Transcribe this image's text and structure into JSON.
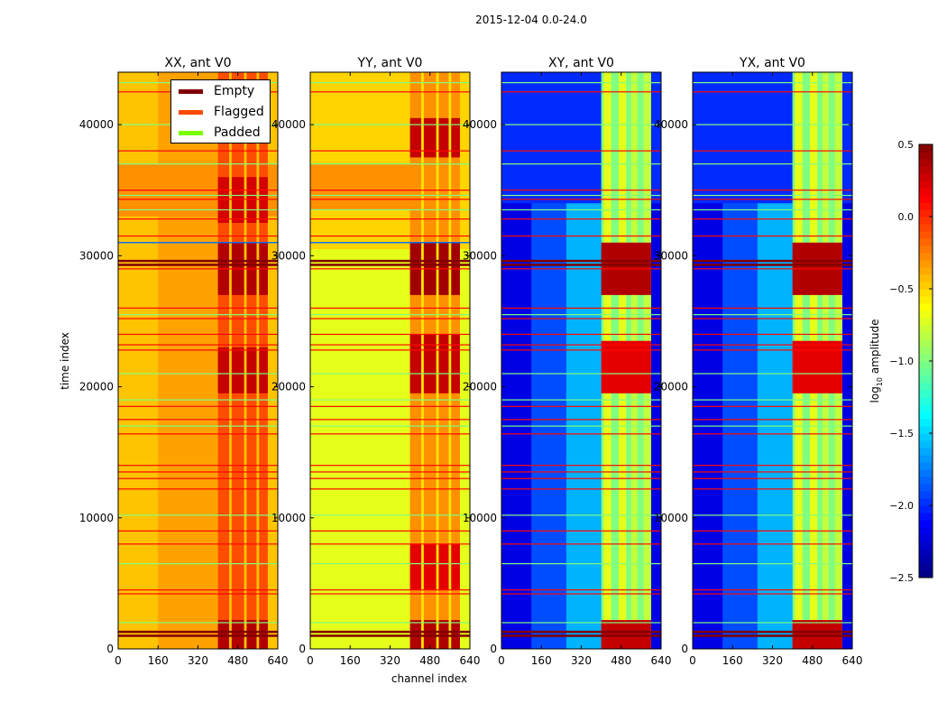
{
  "chart_data": {
    "type": "heatmap",
    "title": "2015-12-04 0.0-24.0",
    "xlabel": "channel index",
    "ylabel": "time index",
    "xlim": [
      0,
      640
    ],
    "ylim": [
      0,
      44000
    ],
    "xticks": [
      "0",
      "160",
      "320",
      "480",
      "640"
    ],
    "yticks": [
      "0",
      "10000",
      "20000",
      "30000",
      "40000"
    ],
    "colorbar": {
      "label": "log10 amplitude",
      "label_main": "log",
      "label_sub": "10",
      "label_rest": " amplitude",
      "range": [
        -2.5,
        0.5
      ],
      "ticks": [
        "0.5",
        "0.0",
        "−0.5",
        "−1.0",
        "−1.5",
        "−2.0",
        "−2.5"
      ],
      "tick_values": [
        0.5,
        0,
        -0.5,
        -1,
        -1.5,
        -2,
        -2.5
      ]
    },
    "legend": {
      "placement": "top-right of first panel",
      "items": [
        {
          "label": "Empty",
          "color": "#800000"
        },
        {
          "label": "Flagged",
          "color": "#ff4a00"
        },
        {
          "label": "Padded",
          "color": "#7dff00"
        }
      ]
    },
    "panels": [
      {
        "title": "XX, ant V0",
        "bands": [
          {
            "t0": 0,
            "t1": 44000,
            "c0": 0,
            "c1": 640,
            "v": -0.45
          },
          {
            "t0": 0,
            "t1": 44000,
            "c0": 160,
            "c1": 400,
            "v": -0.35
          },
          {
            "t0": 33000,
            "t1": 37000,
            "c0": 0,
            "c1": 640,
            "v": -0.3
          },
          {
            "t0": 0,
            "t1": 44000,
            "c0": 400,
            "c1": 600,
            "v": -0.1
          },
          {
            "t0": 0,
            "t1": 2200,
            "c0": 400,
            "c1": 600,
            "v": 0.35
          },
          {
            "t0": 19500,
            "t1": 23000,
            "c0": 400,
            "c1": 600,
            "v": 0.3
          },
          {
            "t0": 27000,
            "t1": 31000,
            "c0": 400,
            "c1": 600,
            "v": 0.35
          },
          {
            "t0": 32500,
            "t1": 36000,
            "c0": 400,
            "c1": 600,
            "v": 0.25
          },
          {
            "t0": 0,
            "t1": 44000,
            "c0": 445,
            "c1": 455,
            "v": -0.45
          },
          {
            "t0": 0,
            "t1": 44000,
            "c0": 505,
            "c1": 515,
            "v": -0.45
          },
          {
            "t0": 0,
            "t1": 44000,
            "c0": 555,
            "c1": 565,
            "v": -0.45
          }
        ],
        "extra_lines": [
          {
            "t": 31000,
            "v": -1.8
          }
        ]
      },
      {
        "title": "YY, ant V0",
        "bands": [
          {
            "t0": 0,
            "t1": 44000,
            "c0": 0,
            "c1": 640,
            "v": -0.7
          },
          {
            "t0": 30500,
            "t1": 44000,
            "c0": 0,
            "c1": 640,
            "v": -0.5
          },
          {
            "t0": 33500,
            "t1": 37000,
            "c0": 0,
            "c1": 400,
            "v": -0.3
          },
          {
            "t0": 0,
            "t1": 44000,
            "c0": 400,
            "c1": 600,
            "v": -0.3
          },
          {
            "t0": 0,
            "t1": 2200,
            "c0": 400,
            "c1": 600,
            "v": 0.35
          },
          {
            "t0": 4500,
            "t1": 8000,
            "c0": 400,
            "c1": 600,
            "v": 0.2
          },
          {
            "t0": 19500,
            "t1": 24000,
            "c0": 400,
            "c1": 600,
            "v": 0.3
          },
          {
            "t0": 27000,
            "t1": 31000,
            "c0": 400,
            "c1": 600,
            "v": 0.4
          },
          {
            "t0": 37500,
            "t1": 40500,
            "c0": 400,
            "c1": 600,
            "v": 0.3
          },
          {
            "t0": 0,
            "t1": 44000,
            "c0": 445,
            "c1": 455,
            "v": -0.55
          },
          {
            "t0": 0,
            "t1": 44000,
            "c0": 505,
            "c1": 515,
            "v": -0.55
          },
          {
            "t0": 0,
            "t1": 44000,
            "c0": 555,
            "c1": 565,
            "v": -0.55
          }
        ],
        "extra_lines": [
          {
            "t": 31000,
            "v": -1.8
          }
        ]
      },
      {
        "title": "XY, ant V0",
        "bands": [
          {
            "t0": 0,
            "t1": 44000,
            "c0": 0,
            "c1": 640,
            "v": -2.2
          },
          {
            "t0": 0,
            "t1": 44000,
            "c0": 120,
            "c1": 400,
            "v": -1.9
          },
          {
            "t0": 0,
            "t1": 44000,
            "c0": 260,
            "c1": 400,
            "v": -1.6
          },
          {
            "t0": 34000,
            "t1": 44000,
            "c0": 0,
            "c1": 640,
            "v": -2.0
          },
          {
            "t0": 0,
            "t1": 44000,
            "c0": 400,
            "c1": 600,
            "v": -1.0
          },
          {
            "t0": 0,
            "t1": 44000,
            "c0": 410,
            "c1": 440,
            "v": -0.7
          },
          {
            "t0": 0,
            "t1": 44000,
            "c0": 470,
            "c1": 500,
            "v": -0.7
          },
          {
            "t0": 0,
            "t1": 44000,
            "c0": 520,
            "c1": 545,
            "v": -0.8
          },
          {
            "t0": 0,
            "t1": 44000,
            "c0": 570,
            "c1": 600,
            "v": -0.8
          },
          {
            "t0": 0,
            "t1": 2200,
            "c0": 400,
            "c1": 600,
            "v": 0.3
          },
          {
            "t0": 19500,
            "t1": 23500,
            "c0": 400,
            "c1": 600,
            "v": 0.2
          },
          {
            "t0": 27000,
            "t1": 31000,
            "c0": 400,
            "c1": 600,
            "v": 0.35
          }
        ],
        "extra_lines": []
      },
      {
        "title": "YX, ant V0",
        "bands": [
          {
            "t0": 0,
            "t1": 44000,
            "c0": 0,
            "c1": 640,
            "v": -2.2
          },
          {
            "t0": 0,
            "t1": 44000,
            "c0": 120,
            "c1": 400,
            "v": -1.9
          },
          {
            "t0": 0,
            "t1": 44000,
            "c0": 260,
            "c1": 400,
            "v": -1.6
          },
          {
            "t0": 34000,
            "t1": 44000,
            "c0": 0,
            "c1": 640,
            "v": -2.0
          },
          {
            "t0": 0,
            "t1": 44000,
            "c0": 400,
            "c1": 600,
            "v": -1.0
          },
          {
            "t0": 0,
            "t1": 44000,
            "c0": 410,
            "c1": 440,
            "v": -0.7
          },
          {
            "t0": 0,
            "t1": 44000,
            "c0": 470,
            "c1": 500,
            "v": -0.7
          },
          {
            "t0": 0,
            "t1": 44000,
            "c0": 520,
            "c1": 545,
            "v": -0.8
          },
          {
            "t0": 0,
            "t1": 44000,
            "c0": 570,
            "c1": 600,
            "v": -0.8
          },
          {
            "t0": 0,
            "t1": 2200,
            "c0": 400,
            "c1": 600,
            "v": 0.3
          },
          {
            "t0": 19500,
            "t1": 23500,
            "c0": 400,
            "c1": 600,
            "v": 0.2
          },
          {
            "t0": 27000,
            "t1": 31000,
            "c0": 400,
            "c1": 600,
            "v": 0.35
          }
        ],
        "extra_lines": []
      }
    ],
    "flag_lines": {
      "empty": {
        "v": 0.5,
        "t": [
          1000,
          1300,
          29300,
          29600
        ]
      },
      "flagged": {
        "v": 0.1,
        "t": [
          4200,
          4500,
          8000,
          9000,
          12200,
          13000,
          13500,
          14000,
          16400,
          17500,
          18500,
          22800,
          23200,
          24000,
          25200,
          26000,
          29000,
          31500,
          32800,
          34300,
          35000,
          38000,
          42500
        ]
      },
      "padded": {
        "v": -1.0,
        "t": [
          2000,
          6500,
          10200,
          17000,
          19000,
          21000,
          25500,
          33500,
          34600,
          37000,
          40000,
          43200
        ]
      }
    }
  }
}
